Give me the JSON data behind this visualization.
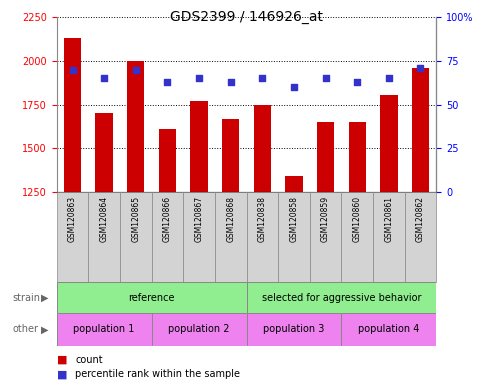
{
  "title": "GDS2399 / 146926_at",
  "samples": [
    "GSM120863",
    "GSM120864",
    "GSM120865",
    "GSM120866",
    "GSM120867",
    "GSM120868",
    "GSM120838",
    "GSM120858",
    "GSM120859",
    "GSM120860",
    "GSM120861",
    "GSM120862"
  ],
  "counts": [
    2130,
    1700,
    2000,
    1610,
    1770,
    1670,
    1750,
    1340,
    1650,
    1650,
    1805,
    1960
  ],
  "percentiles": [
    70,
    65,
    70,
    63,
    65,
    63,
    65,
    60,
    65,
    63,
    65,
    71
  ],
  "ylim_left": [
    1250,
    2250
  ],
  "ylim_right": [
    0,
    100
  ],
  "yticks_left": [
    1250,
    1500,
    1750,
    2000,
    2250
  ],
  "yticks_right": [
    0,
    25,
    50,
    75,
    100
  ],
  "bar_color": "#cc0000",
  "dot_color": "#3333cc",
  "strain_groups": [
    {
      "label": "reference",
      "start": 0,
      "end": 6,
      "color": "#90EE90"
    },
    {
      "label": "selected for aggressive behavior",
      "start": 6,
      "end": 12,
      "color": "#90EE90"
    }
  ],
  "other_groups": [
    {
      "label": "population 1",
      "start": 0,
      "end": 3,
      "color": "#EE82EE"
    },
    {
      "label": "population 2",
      "start": 3,
      "end": 6,
      "color": "#EE82EE"
    },
    {
      "label": "population 3",
      "start": 6,
      "end": 9,
      "color": "#EE82EE"
    },
    {
      "label": "population 4",
      "start": 9,
      "end": 12,
      "color": "#EE82EE"
    }
  ],
  "strain_label": "strain",
  "other_label": "other",
  "legend_count_label": "count",
  "legend_percentile_label": "percentile rank within the sample",
  "bar_width": 0.55,
  "tick_label_fontsize": 7,
  "title_fontsize": 10,
  "background_color": "#ffffff",
  "xlabels_bg": "#d3d3d3",
  "border_color": "#888888"
}
